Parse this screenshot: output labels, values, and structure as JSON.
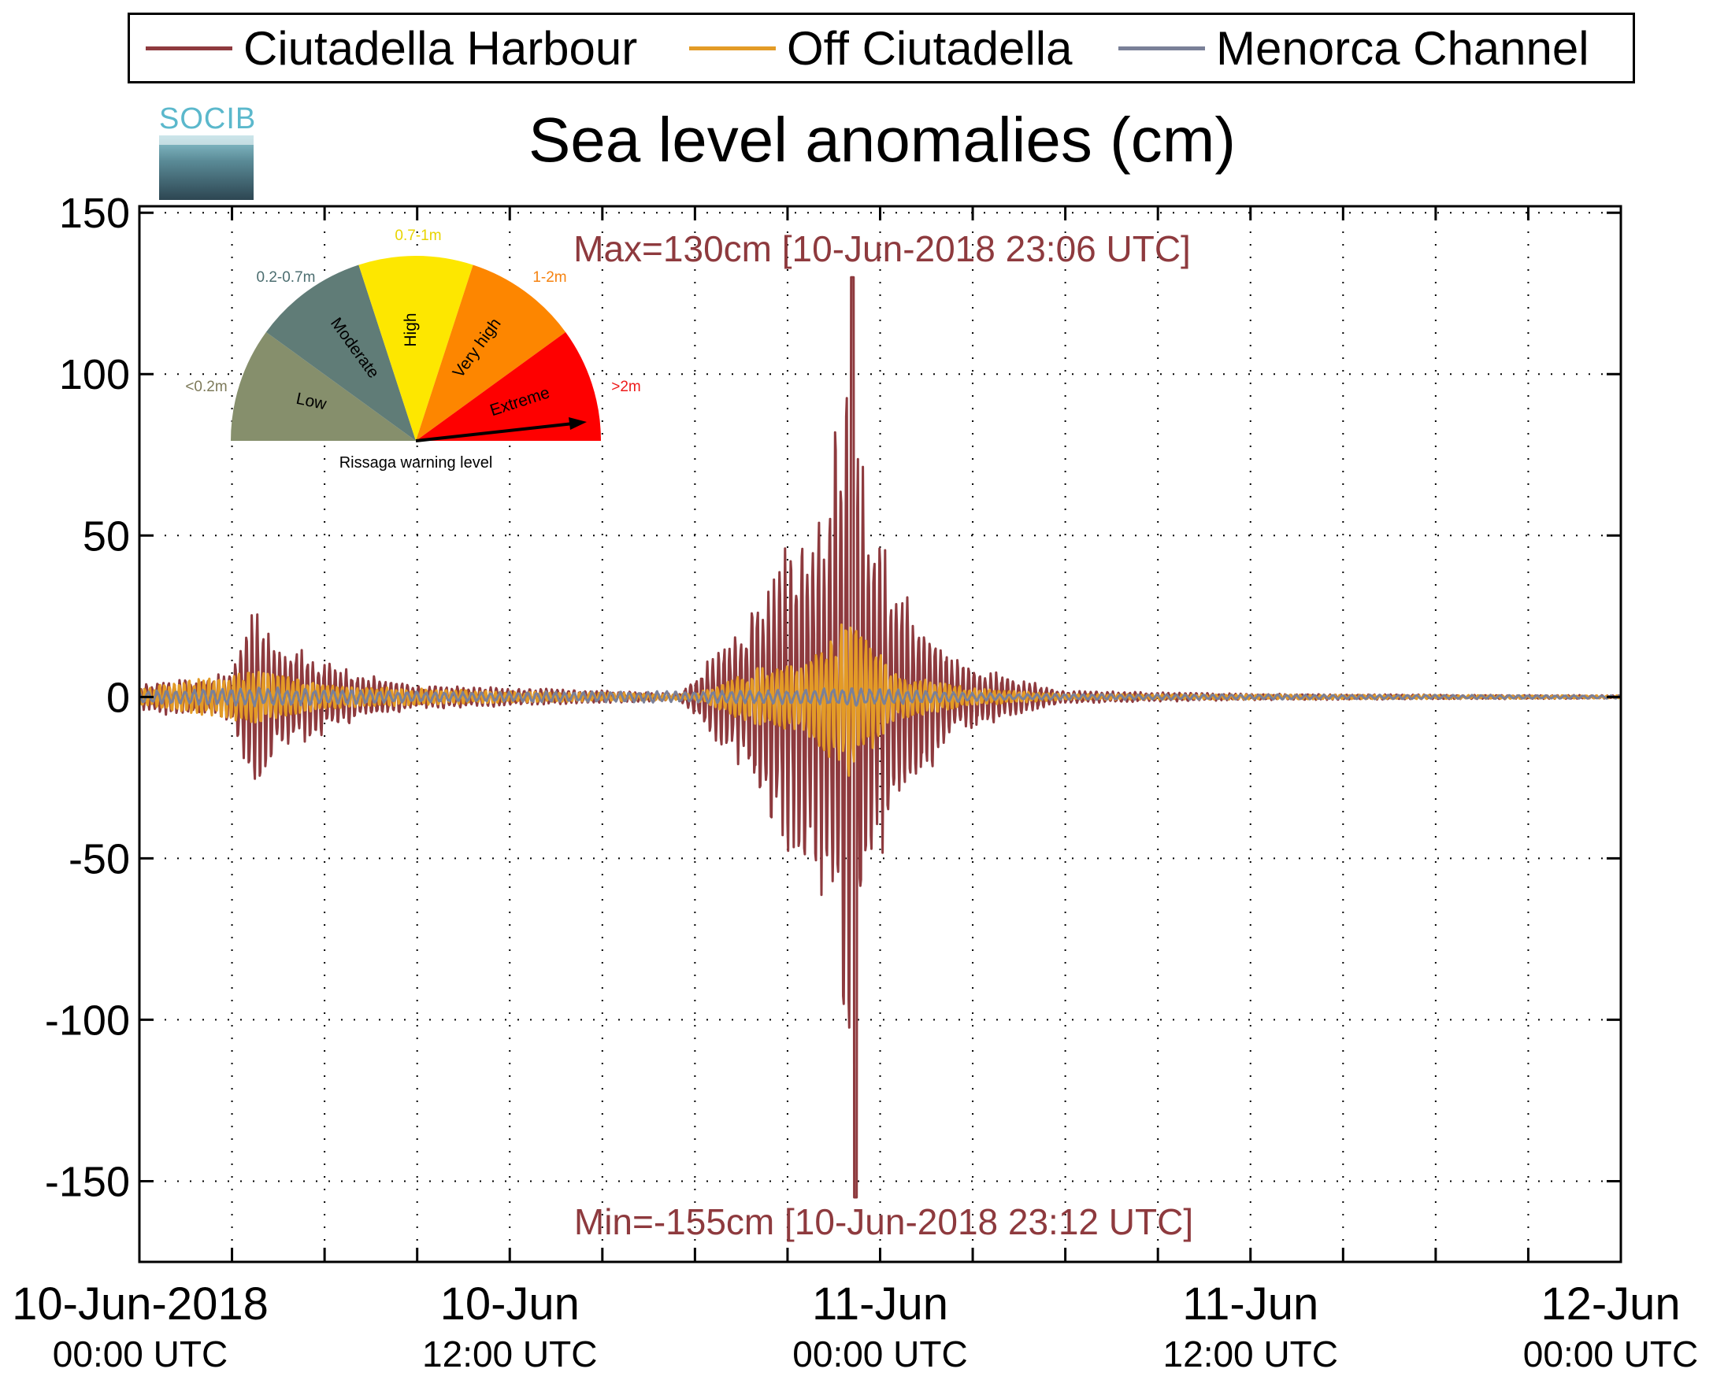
{
  "legend": [
    {
      "label": "Ciutadella Harbour",
      "color": "#8e3a3e"
    },
    {
      "label": "Off Ciutadella",
      "color": "#e39b26"
    },
    {
      "label": "Menorca Channel",
      "color": "#7a8098"
    }
  ],
  "logo_text": "SOCIB",
  "chart_data": {
    "type": "line",
    "title": "Sea level anomalies (cm)",
    "ylim": [
      -175,
      152
    ],
    "yticks": [
      150,
      100,
      50,
      0,
      -50,
      -100,
      -150
    ],
    "xlim_hours": [
      0,
      48
    ],
    "xticks": [
      {
        "line1": "10-Jun-2018",
        "line2": "00:00 UTC"
      },
      {
        "line1": "10-Jun",
        "line2": "12:00 UTC"
      },
      {
        "line1": "11-Jun",
        "line2": "00:00 UTC"
      },
      {
        "line1": "11-Jun",
        "line2": "12:00 UTC"
      },
      {
        "line1": "12-Jun",
        "line2": "00:00 UTC"
      }
    ],
    "grid": true,
    "annotations": {
      "max": "Max=130cm [10-Jun-2018 23:06 UTC]",
      "min": "Min=-155cm [10-Jun-2018 23:12 UTC]"
    },
    "max_point": {
      "time": "10-Jun-2018 23:06 UTC",
      "value": 130
    },
    "min_point": {
      "time": "10-Jun-2018 23:12 UTC",
      "value": -155
    },
    "series": [
      {
        "name": "Ciutadella Harbour",
        "color": "#8e3a3e",
        "envelope": [
          {
            "t": 0,
            "a": 4
          },
          {
            "t": 1,
            "a": 6
          },
          {
            "t": 2,
            "a": 5
          },
          {
            "t": 3,
            "a": 10
          },
          {
            "t": 3.8,
            "a": 30
          },
          {
            "t": 4.5,
            "a": 18
          },
          {
            "t": 5.5,
            "a": 14
          },
          {
            "t": 7,
            "a": 8
          },
          {
            "t": 9,
            "a": 4
          },
          {
            "t": 12,
            "a": 3
          },
          {
            "t": 15,
            "a": 2
          },
          {
            "t": 17.5,
            "a": 1
          },
          {
            "t": 19.6,
            "a": 25
          },
          {
            "t": 20.5,
            "a": 45
          },
          {
            "t": 21.5,
            "a": 55
          },
          {
            "t": 22.3,
            "a": 70
          },
          {
            "t": 23.1,
            "a": 130
          },
          {
            "t": 23.6,
            "a": 60
          },
          {
            "t": 24.5,
            "a": 40
          },
          {
            "t": 25.5,
            "a": 25
          },
          {
            "t": 26.5,
            "a": 12
          },
          {
            "t": 28,
            "a": 7
          },
          {
            "t": 30,
            "a": 2
          },
          {
            "t": 36,
            "a": 1
          },
          {
            "t": 48,
            "a": 0.5
          }
        ]
      },
      {
        "name": "Off Ciutadella",
        "color": "#e39b26",
        "envelope": [
          {
            "t": 0,
            "a": 3
          },
          {
            "t": 3.8,
            "a": 10
          },
          {
            "t": 6,
            "a": 4
          },
          {
            "t": 12,
            "a": 2
          },
          {
            "t": 18,
            "a": 1
          },
          {
            "t": 20,
            "a": 10
          },
          {
            "t": 21.5,
            "a": 12
          },
          {
            "t": 23.1,
            "a": 30
          },
          {
            "t": 24.5,
            "a": 8
          },
          {
            "t": 27,
            "a": 3
          },
          {
            "t": 30,
            "a": 1
          },
          {
            "t": 48,
            "a": 0.5
          }
        ]
      },
      {
        "name": "Menorca Channel",
        "color": "#7a8098",
        "envelope": [
          {
            "t": 0,
            "a": 2
          },
          {
            "t": 4,
            "a": 3
          },
          {
            "t": 10,
            "a": 1.5
          },
          {
            "t": 20,
            "a": 2
          },
          {
            "t": 23,
            "a": 3
          },
          {
            "t": 28,
            "a": 1
          },
          {
            "t": 48,
            "a": 0.5
          }
        ]
      }
    ]
  },
  "gauge": {
    "caption": "Rissaga warning level",
    "sectors": [
      {
        "name": "Low",
        "range": "<0.2m",
        "color": "#868f6c",
        "range_color": "#7d7a5a"
      },
      {
        "name": "Moderate",
        "range": "0.2-0.7m",
        "color": "#607c77",
        "range_color": "#4c6e70"
      },
      {
        "name": "High",
        "range": "0.7-1m",
        "color": "#fde700",
        "range_color": "#e8d400"
      },
      {
        "name": "Very high",
        "range": "1-2m",
        "color": "#fd8600",
        "range_color": "#f5820f"
      },
      {
        "name": "Extreme",
        "range": ">2m",
        "color": "#fe0000",
        "range_color": "#ee1a1a"
      }
    ]
  }
}
